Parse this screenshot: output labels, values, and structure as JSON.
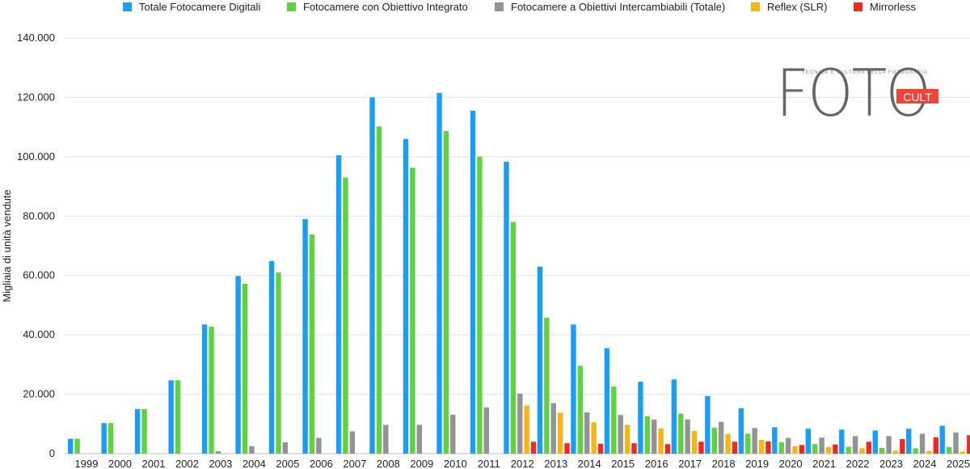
{
  "chart_data": {
    "type": "bar",
    "ylabel": "Migliaia di unità vendute",
    "ylim": [
      0,
      140000
    ],
    "yticks": [
      0,
      20000,
      40000,
      60000,
      80000,
      100000,
      120000,
      140000
    ],
    "ytick_labels": [
      "0",
      "20.000",
      "40.000",
      "60.000",
      "80.000",
      "100.000",
      "120.000",
      "140.000"
    ],
    "grid": true,
    "legend_position": "top",
    "categories": [
      "1999",
      "2000",
      "2001",
      "2002",
      "2003",
      "2004",
      "2005",
      "2006",
      "2007",
      "2008",
      "2009",
      "2010",
      "2011",
      "2012",
      "2013",
      "2014",
      "2015",
      "2016",
      "2017",
      "2018",
      "2019",
      "2020",
      "2021",
      "2022",
      "2023",
      "2024",
      "2025"
    ],
    "series": [
      {
        "name": "Totale Fotocamere Digitali",
        "color": "#1a9ef5",
        "values": [
          5000,
          10300,
          15000,
          24700,
          43500,
          59800,
          64900,
          79000,
          100500,
          120000,
          106000,
          121500,
          115500,
          98300,
          63000,
          43500,
          35500,
          24200,
          25000,
          19400,
          15300,
          8900,
          8400,
          8100,
          7800,
          8400,
          9400
        ]
      },
      {
        "name": "Fotocamere con Obiettivo Integrato",
        "color": "#5fd23f",
        "values": [
          5000,
          10300,
          15000,
          24700,
          42800,
          57200,
          61000,
          73800,
          93000,
          110200,
          96300,
          108700,
          100000,
          78000,
          45800,
          29600,
          22600,
          12600,
          13500,
          8700,
          6700,
          3800,
          3200,
          2300,
          1900,
          1800,
          2200
        ]
      },
      {
        "name": "Fotocamere a Obiettivi Intercambiabili (Totale)",
        "color": "#939393",
        "values": [
          0,
          0,
          0,
          0,
          800,
          2500,
          3800,
          5300,
          7500,
          9700,
          9700,
          13100,
          15600,
          20200,
          17000,
          13900,
          13000,
          11500,
          11500,
          10700,
          8600,
          5300,
          5400,
          5900,
          5900,
          6700,
          7100
        ]
      },
      {
        "name": "Reflex (SLR)",
        "color": "#f5b515",
        "values": [
          0,
          0,
          0,
          0,
          0,
          0,
          0,
          0,
          0,
          0,
          0,
          0,
          0,
          16200,
          13800,
          10500,
          9700,
          8500,
          7600,
          6600,
          4700,
          2500,
          2200,
          1800,
          1000,
          900,
          700
        ]
      },
      {
        "name": "Mirrorless",
        "color": "#f0291e",
        "values": [
          0,
          0,
          0,
          0,
          0,
          0,
          0,
          0,
          0,
          0,
          0,
          0,
          0,
          4000,
          3500,
          3300,
          3500,
          3200,
          4000,
          4000,
          4100,
          2900,
          3100,
          4000,
          4900,
          5500,
          6200
        ]
      }
    ]
  },
  "logo": {
    "main_text": "FOTO",
    "badge_text": "CULT",
    "tagline": "TECNICA E CULTURA DELLA FOTOGRAFIA",
    "colors": {
      "main": "#666666",
      "badge_bg": "#f0433a",
      "badge_text": "#ffffff"
    }
  }
}
